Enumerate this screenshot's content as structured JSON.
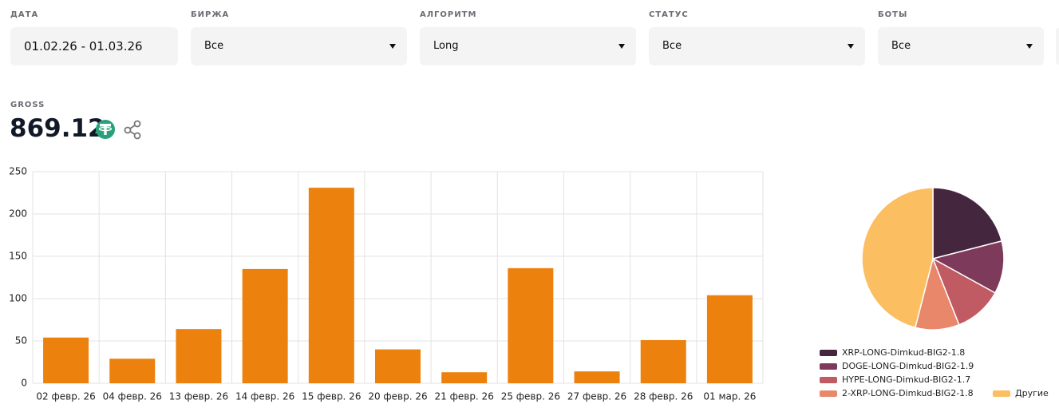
{
  "filters": [
    {
      "label": "ДАТА",
      "value": "01.02.26 - 01.03.26"
    },
    {
      "label": "БИРЖА",
      "value": "Все"
    },
    {
      "label": "АЛГОРИТМ",
      "value": "Long"
    },
    {
      "label": "СТАТУС",
      "value": "Все"
    },
    {
      "label": "БОТЫ",
      "value": "Все"
    }
  ],
  "gross": {
    "label": "GROSS",
    "value": "869.12"
  },
  "chart_data": [
    {
      "type": "bar",
      "categories": [
        "02 февр. 26",
        "04 февр. 26",
        "13 февр. 26",
        "14 февр. 26",
        "15 февр. 26",
        "20 февр. 26",
        "21 февр. 26",
        "25 февр. 26",
        "27 февр. 26",
        "28 февр. 26",
        "01 мар. 26"
      ],
      "values": [
        54,
        29,
        64,
        135,
        231,
        40,
        13,
        136,
        14,
        51,
        104
      ],
      "color": "#ec810e",
      "ylim": [
        0,
        250
      ],
      "yticks": [
        0,
        50,
        100,
        150,
        200,
        250
      ],
      "grid": true
    },
    {
      "type": "pie",
      "categories": [
        "XRP-LONG-Dimkud-BIG2-1.8",
        "DOGE-LONG-Dimkud-BIG2-1.9",
        "HYPE-LONG-Dimkud-BIG2-1.7",
        "2-XRP-LONG-Dimkud-BIG2-1.8",
        "Другие"
      ],
      "values": [
        21,
        12,
        11,
        10,
        46
      ],
      "colors": [
        "#45263f",
        "#7e3a5a",
        "#c05a63",
        "#e8876a",
        "#fbbf62"
      ]
    }
  ]
}
